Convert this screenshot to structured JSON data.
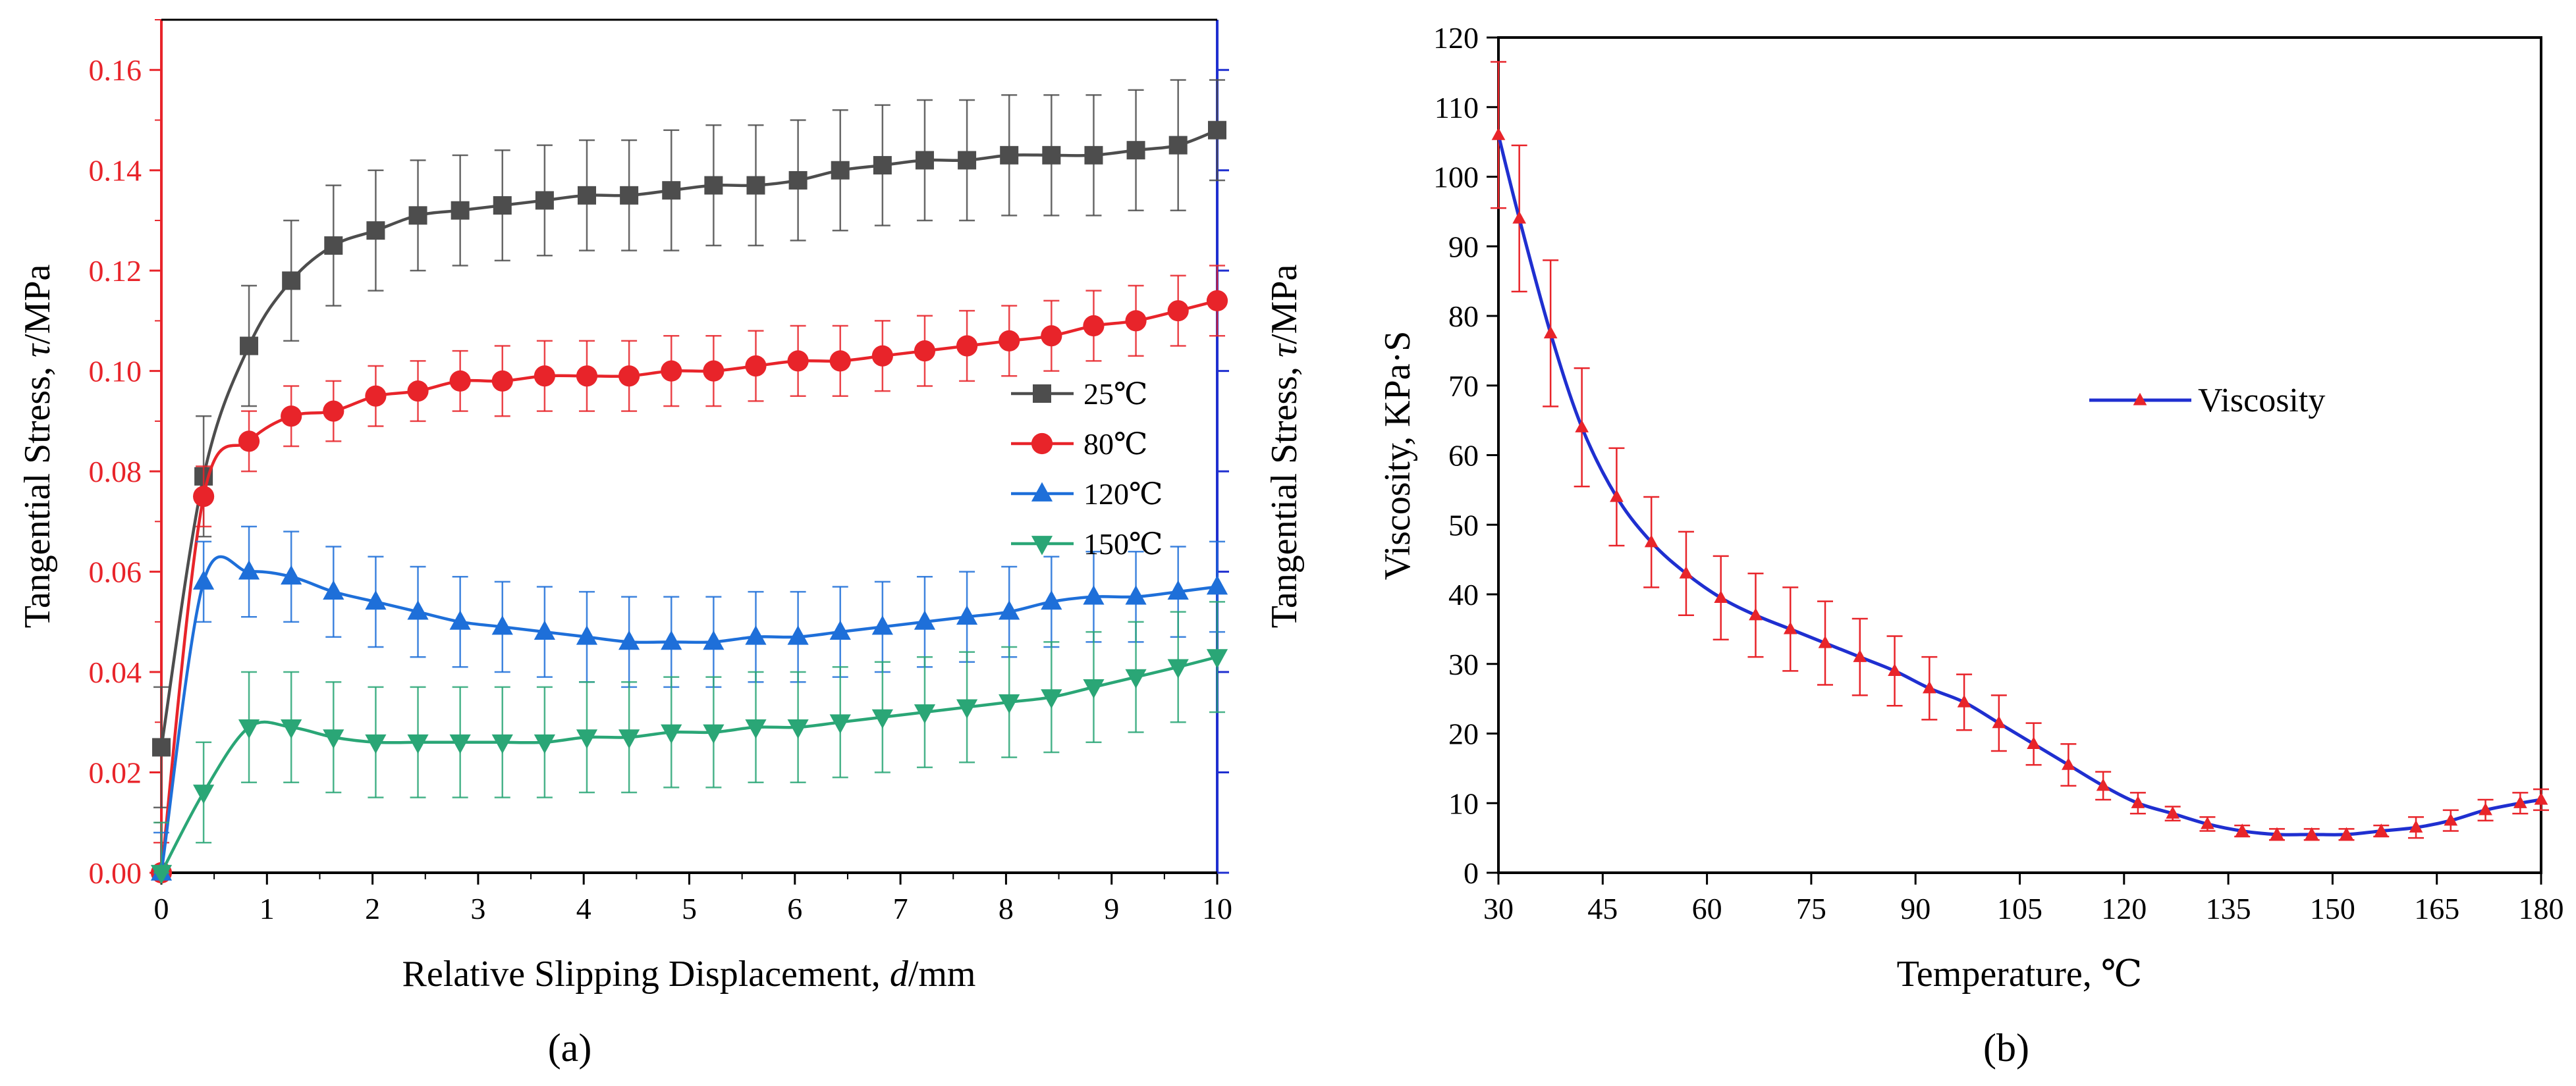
{
  "chart_data": [
    {
      "type": "line",
      "panel_label": "(a)",
      "xlabel": "Relative Slipping Displacement, d/mm",
      "ylabel_left": "Tangential Stress, τ/MPa",
      "ylabel_right": "Tangential Stress, τ/MPa",
      "xlim": [
        0,
        10
      ],
      "ylim": [
        0,
        0.17
      ],
      "xticks": [
        "0",
        "1",
        "2",
        "3",
        "4",
        "5",
        "6",
        "7",
        "8",
        "9",
        "10"
      ],
      "yticks": [
        "0.00",
        "0.02",
        "0.04",
        "0.06",
        "0.08",
        "0.10",
        "0.12",
        "0.14",
        "0.16"
      ],
      "left_axis_color": "#e8242a",
      "right_axis_color": "#1f2fd0",
      "legend_position": "center-right",
      "x": [
        0,
        0.4,
        0.83,
        1.23,
        1.63,
        2.03,
        2.43,
        2.83,
        3.23,
        3.63,
        4.03,
        4.43,
        4.83,
        5.23,
        5.63,
        6.03,
        6.43,
        6.83,
        7.23,
        7.63,
        8.03,
        8.43,
        8.83,
        9.23,
        9.63,
        10
      ],
      "series": [
        {
          "name": "25℃",
          "marker": "square",
          "color": "#4d4d4d",
          "values": [
            0.025,
            0.079,
            0.105,
            0.118,
            0.125,
            0.128,
            0.131,
            0.132,
            0.133,
            0.134,
            0.135,
            0.135,
            0.136,
            0.137,
            0.137,
            0.138,
            0.14,
            0.141,
            0.142,
            0.142,
            0.143,
            0.143,
            0.143,
            0.144,
            0.145,
            0.148
          ],
          "errors": [
            0.012,
            0.012,
            0.012,
            0.012,
            0.012,
            0.012,
            0.011,
            0.011,
            0.011,
            0.011,
            0.011,
            0.011,
            0.012,
            0.012,
            0.012,
            0.012,
            0.012,
            0.012,
            0.012,
            0.012,
            0.012,
            0.012,
            0.012,
            0.012,
            0.013,
            0.01
          ]
        },
        {
          "name": "80℃",
          "marker": "circle",
          "color": "#e8242a",
          "values": [
            0.0,
            0.075,
            0.086,
            0.091,
            0.092,
            0.095,
            0.096,
            0.098,
            0.098,
            0.099,
            0.099,
            0.099,
            0.1,
            0.1,
            0.101,
            0.102,
            0.102,
            0.103,
            0.104,
            0.105,
            0.106,
            0.107,
            0.109,
            0.11,
            0.112,
            0.114
          ],
          "errors": [
            0.006,
            0.006,
            0.006,
            0.006,
            0.006,
            0.006,
            0.006,
            0.006,
            0.007,
            0.007,
            0.007,
            0.007,
            0.007,
            0.007,
            0.007,
            0.007,
            0.007,
            0.007,
            0.007,
            0.007,
            0.007,
            0.007,
            0.007,
            0.007,
            0.007,
            0.007
          ]
        },
        {
          "name": "120℃",
          "marker": "triangle-up",
          "color": "#1e6fd9",
          "values": [
            0.0,
            0.058,
            0.06,
            0.059,
            0.056,
            0.054,
            0.052,
            0.05,
            0.049,
            0.048,
            0.047,
            0.046,
            0.046,
            0.046,
            0.047,
            0.047,
            0.048,
            0.049,
            0.05,
            0.051,
            0.052,
            0.054,
            0.055,
            0.055,
            0.056,
            0.057
          ],
          "errors": [
            0.008,
            0.008,
            0.009,
            0.009,
            0.009,
            0.009,
            0.009,
            0.009,
            0.009,
            0.009,
            0.009,
            0.009,
            0.009,
            0.009,
            0.009,
            0.009,
            0.009,
            0.009,
            0.009,
            0.009,
            0.009,
            0.009,
            0.009,
            0.009,
            0.009,
            0.009
          ]
        },
        {
          "name": "150℃",
          "marker": "triangle-down",
          "color": "#2aa676",
          "values": [
            0.0,
            0.016,
            0.029,
            0.029,
            0.027,
            0.026,
            0.026,
            0.026,
            0.026,
            0.026,
            0.027,
            0.027,
            0.028,
            0.028,
            0.029,
            0.029,
            0.03,
            0.031,
            0.032,
            0.033,
            0.034,
            0.035,
            0.037,
            0.039,
            0.041,
            0.043
          ],
          "errors": [
            0.01,
            0.01,
            0.011,
            0.011,
            0.011,
            0.011,
            0.011,
            0.011,
            0.011,
            0.011,
            0.011,
            0.011,
            0.011,
            0.011,
            0.011,
            0.011,
            0.011,
            0.011,
            0.011,
            0.011,
            0.011,
            0.011,
            0.011,
            0.011,
            0.011,
            0.011
          ]
        }
      ]
    },
    {
      "type": "line",
      "panel_label": "(b)",
      "xlabel": "Temperature, ℃",
      "ylabel": "Viscosity, KPa·S",
      "xlim": [
        30,
        180
      ],
      "ylim": [
        0,
        120
      ],
      "xticks": [
        "30",
        "45",
        "60",
        "75",
        "90",
        "105",
        "120",
        "135",
        "150",
        "165",
        "180"
      ],
      "yticks": [
        "0",
        "10",
        "20",
        "30",
        "40",
        "50",
        "60",
        "70",
        "80",
        "90",
        "100",
        "110",
        "120"
      ],
      "legend_position": "center-right",
      "series": [
        {
          "name": "Viscosity",
          "line_color": "#1f2fd0",
          "marker_color": "#e8242a",
          "marker": "triangle-up",
          "x": [
            30,
            33,
            37.5,
            42,
            47,
            52,
            57,
            62,
            67,
            72,
            77,
            82,
            87,
            92,
            97,
            102,
            107,
            112,
            117,
            122,
            127,
            132,
            137,
            142,
            147,
            152,
            157,
            162,
            167,
            172,
            177,
            180
          ],
          "values": [
            106,
            94,
            77.5,
            64,
            54,
            47.5,
            43,
            39.5,
            37,
            35,
            33,
            31,
            29,
            26.5,
            24.5,
            21.5,
            18.5,
            15.5,
            12.5,
            10,
            8.5,
            7,
            6,
            5.5,
            5.5,
            5.5,
            6,
            6.5,
            7.5,
            9,
            10,
            10.5
          ],
          "errors": [
            10.5,
            10.5,
            10.5,
            8.5,
            7,
            6.5,
            6,
            6,
            6,
            6,
            6,
            5.5,
            5,
            4.5,
            4,
            4,
            3,
            3,
            2,
            1.5,
            1,
            1,
            0.8,
            0.8,
            0.8,
            0.8,
            0.8,
            1.5,
            1.5,
            1.5,
            1.5,
            1.5
          ]
        }
      ]
    }
  ]
}
